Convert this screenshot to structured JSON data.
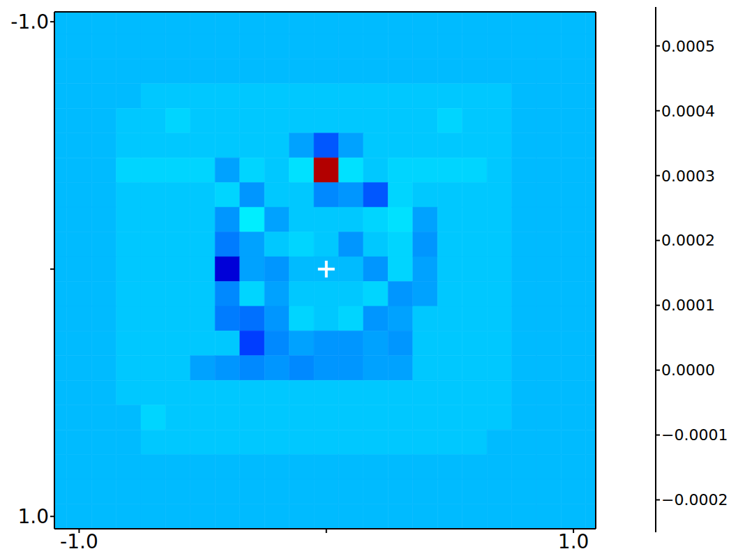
{
  "chart_data": {
    "type": "heatmap",
    "color": "jet",
    "xlim": [
      -1.1,
      1.09
    ],
    "ylim": [
      1.05,
      -1.04
    ],
    "xticks": [
      {
        "value": -1,
        "label": "-1.0"
      },
      0,
      {
        "value": 1,
        "label": "1.0"
      }
    ],
    "yticks": [
      {
        "value": -1,
        "label": "-1.0"
      },
      0,
      {
        "value": 1,
        "label": "1.0"
      }
    ],
    "cells": {
      "x": [
        -1.1,
        -1.0,
        -0.9,
        -0.8,
        -0.7,
        -0.6,
        -0.5,
        -0.4,
        -0.3,
        -0.2,
        -0.1,
        0,
        0.1,
        0.2,
        0.3,
        0.4,
        0.5,
        0.6,
        0.7,
        0.8,
        0.9,
        1.0,
        1.1
      ],
      "y": [
        -1.0,
        -0.9,
        -0.8,
        -0.7,
        -0.6,
        -0.5,
        -0.4,
        -0.3,
        -0.2,
        -0.1,
        0,
        0.1,
        0.2,
        0.3,
        0.4,
        0.5,
        0.6,
        0.7,
        0.8,
        0.9,
        1.0
      ],
      "values": [
        [
          0,
          0,
          0,
          0,
          0,
          0,
          0,
          0,
          0,
          0,
          0,
          0,
          0,
          0,
          0,
          0,
          0,
          0,
          0,
          0,
          0,
          0,
          0
        ],
        [
          0,
          0,
          0,
          0,
          0,
          0,
          0,
          0,
          0,
          0,
          0,
          0,
          0,
          0,
          0,
          0,
          0,
          0,
          0,
          0,
          0,
          0,
          0
        ],
        [
          0,
          0,
          0,
          0,
          0,
          0,
          0,
          0,
          0,
          0,
          0,
          0,
          0,
          0,
          0,
          0,
          0,
          0,
          0,
          0,
          0,
          0,
          0
        ],
        [
          0,
          0,
          0,
          0,
          1e-05,
          1e-05,
          1e-05,
          1e-05,
          1e-05,
          1e-05,
          1e-05,
          1e-05,
          1e-05,
          1e-05,
          1e-05,
          1e-05,
          1e-05,
          1e-05,
          1e-05,
          0,
          0,
          0,
          0
        ],
        [
          0,
          0,
          0,
          1e-05,
          1e-05,
          2e-05,
          1e-05,
          1e-05,
          1e-05,
          1e-05,
          1e-05,
          1e-05,
          1e-05,
          1e-05,
          1e-05,
          1e-05,
          2e-05,
          1e-05,
          1e-05,
          0,
          0,
          0,
          0
        ],
        [
          0,
          0,
          0,
          1e-05,
          1e-05,
          1e-05,
          1e-05,
          1e-05,
          1e-05,
          1e-05,
          -2e-05,
          -8e-05,
          -2e-05,
          1e-05,
          1e-05,
          1e-05,
          1e-05,
          1e-05,
          1e-05,
          0,
          0,
          0,
          0
        ],
        [
          0,
          0,
          0,
          2e-05,
          2e-05,
          2e-05,
          2e-05,
          -2e-05,
          2e-05,
          1e-05,
          3e-05,
          0.00052,
          3e-05,
          1e-05,
          2e-05,
          2e-05,
          2e-05,
          2e-05,
          1e-05,
          0,
          0,
          0,
          0
        ],
        [
          0,
          0,
          0,
          1e-05,
          1e-05,
          1e-05,
          1e-05,
          2e-05,
          -3e-05,
          1e-05,
          1e-05,
          -4e-05,
          -3e-05,
          -8e-05,
          2e-05,
          1e-05,
          1e-05,
          1e-05,
          1e-05,
          0,
          0,
          0,
          0
        ],
        [
          0,
          0,
          0,
          1e-05,
          1e-05,
          1e-05,
          1e-05,
          -3e-05,
          4e-05,
          -2e-05,
          1e-05,
          1e-05,
          1e-05,
          2e-05,
          3e-05,
          -2e-05,
          1e-05,
          1e-05,
          1e-05,
          0,
          0,
          0,
          0
        ],
        [
          0,
          0,
          0,
          1e-05,
          1e-05,
          1e-05,
          1e-05,
          -5e-05,
          -2e-05,
          1e-05,
          2e-05,
          1e-05,
          -3e-05,
          1e-05,
          2e-05,
          -3e-05,
          1e-05,
          1e-05,
          1e-05,
          0,
          0,
          0,
          0
        ],
        [
          0,
          0,
          0,
          1e-05,
          1e-05,
          1e-05,
          1e-05,
          -0.00018,
          -2e-05,
          -3e-05,
          0,
          0,
          0,
          -3e-05,
          2e-05,
          -2e-05,
          1e-05,
          1e-05,
          1e-05,
          0,
          0,
          0,
          0
        ],
        [
          0,
          0,
          0,
          1e-05,
          1e-05,
          1e-05,
          1e-05,
          -4e-05,
          2e-05,
          -2e-05,
          1e-05,
          1e-05,
          1e-05,
          2e-05,
          -3e-05,
          -2e-05,
          1e-05,
          1e-05,
          1e-05,
          0,
          0,
          0,
          0
        ],
        [
          0,
          0,
          0,
          1e-05,
          1e-05,
          1e-05,
          1e-05,
          -5e-05,
          -6e-05,
          -3e-05,
          2e-05,
          1e-05,
          2e-05,
          -3e-05,
          -2e-05,
          1e-05,
          1e-05,
          1e-05,
          1e-05,
          0,
          0,
          0,
          0
        ],
        [
          0,
          0,
          0,
          1e-05,
          1e-05,
          1e-05,
          1e-05,
          1e-05,
          -0.0001,
          -4e-05,
          -2e-05,
          -3e-05,
          -3e-05,
          -2e-05,
          -3e-05,
          1e-05,
          1e-05,
          1e-05,
          1e-05,
          0,
          0,
          0,
          0
        ],
        [
          0,
          0,
          0,
          1e-05,
          1e-05,
          1e-05,
          -2e-05,
          -3e-05,
          -4e-05,
          -3e-05,
          -4e-05,
          -3e-05,
          -3e-05,
          -2e-05,
          -2e-05,
          1e-05,
          1e-05,
          1e-05,
          1e-05,
          0,
          0,
          0,
          0
        ],
        [
          0,
          0,
          0,
          1e-05,
          1e-05,
          1e-05,
          1e-05,
          1e-05,
          1e-05,
          1e-05,
          1e-05,
          1e-05,
          1e-05,
          1e-05,
          1e-05,
          1e-05,
          1e-05,
          1e-05,
          1e-05,
          0,
          0,
          0,
          0
        ],
        [
          0,
          0,
          0,
          0,
          2e-05,
          1e-05,
          1e-05,
          1e-05,
          1e-05,
          1e-05,
          1e-05,
          1e-05,
          1e-05,
          1e-05,
          1e-05,
          1e-05,
          1e-05,
          1e-05,
          1e-05,
          0,
          0,
          0,
          0
        ],
        [
          0,
          0,
          0,
          0,
          1e-05,
          1e-05,
          1e-05,
          1e-05,
          1e-05,
          1e-05,
          1e-05,
          1e-05,
          1e-05,
          1e-05,
          1e-05,
          1e-05,
          1e-05,
          1e-05,
          0,
          0,
          0,
          0,
          0
        ],
        [
          0,
          0,
          0,
          0,
          0,
          0,
          0,
          0,
          0,
          0,
          0,
          0,
          0,
          0,
          0,
          0,
          0,
          0,
          0,
          0,
          0,
          0,
          0
        ],
        [
          0,
          0,
          0,
          0,
          0,
          0,
          0,
          0,
          0,
          0,
          0,
          0,
          0,
          0,
          0,
          0,
          0,
          0,
          0,
          0,
          0,
          0,
          0
        ],
        [
          0,
          0,
          0,
          0,
          0,
          0,
          0,
          0,
          0,
          0,
          0,
          0,
          0,
          0,
          0,
          0,
          0,
          0,
          0,
          0,
          0,
          0,
          0
        ]
      ]
    },
    "colorbar": {
      "range": [
        -0.00025,
        0.00056
      ],
      "ticks": [
        {
          "value": -0.0002,
          "label": "−0.0002"
        },
        {
          "value": -0.0001,
          "label": "−0.0001"
        },
        {
          "value": 0,
          "label": "0.0000"
        },
        {
          "value": 0.0001,
          "label": "0.0001"
        },
        {
          "value": 0.0002,
          "label": "0.0002"
        },
        {
          "value": 0.0003,
          "label": "0.0003"
        },
        {
          "value": 0.0004,
          "label": "0.0004"
        },
        {
          "value": 0.0005,
          "label": "0.0005"
        }
      ]
    },
    "markers": {
      "x": [
        0
      ],
      "y": [
        0
      ],
      "marker": "plus",
      "color": "#ffffff"
    }
  }
}
